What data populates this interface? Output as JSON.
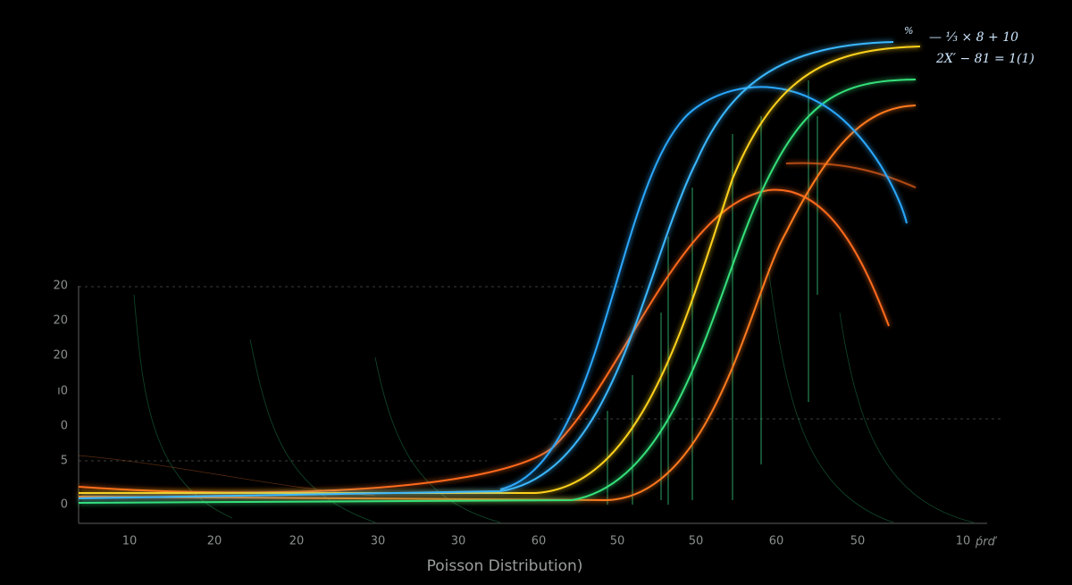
{
  "title": "Poisson Distribution)",
  "x_axis": {
    "labels": [
      "10",
      "20",
      "20",
      "30",
      "30",
      "60",
      "50",
      "50",
      "60",
      "50",
      "10"
    ],
    "unit": "ṕrď"
  },
  "y_axis": {
    "labels": [
      "20",
      "20",
      "20",
      "ı0",
      "0",
      "5",
      "0"
    ]
  },
  "formula": {
    "lines": [
      "%",
      "— ⅓ × 8 + 10",
      "2X′ − 81 = 1(1)"
    ]
  }
}
